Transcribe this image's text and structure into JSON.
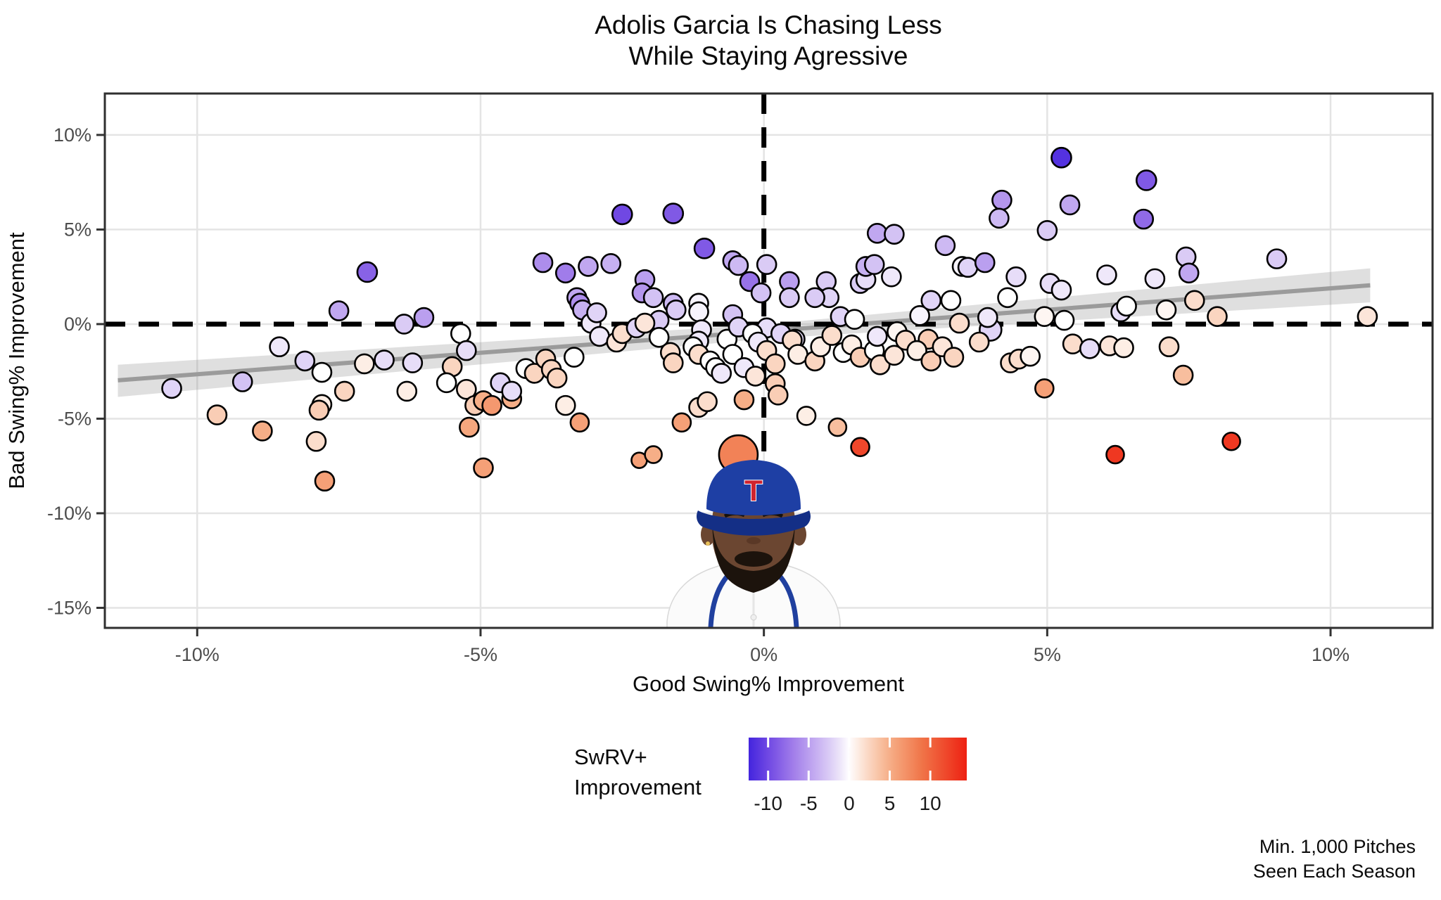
{
  "title": {
    "line1": "Adolis Garcia Is Chasing Less",
    "line2": "While Staying Agressive"
  },
  "footnote": {
    "line1": "Min. 1,000 Pitches",
    "line2": "Seen Each Season"
  },
  "legend": {
    "title_line1": "SwRV+",
    "title_line2": "Improvement",
    "domain": [
      -12.4,
      14.5
    ],
    "ticks": [
      {
        "value": -10,
        "label": "-10"
      },
      {
        "value": -5,
        "label": "-5"
      },
      {
        "value": 0,
        "label": "0"
      },
      {
        "value": 5,
        "label": "5"
      },
      {
        "value": 10,
        "label": "10"
      }
    ]
  },
  "colors": {
    "grid": "#e4e4e4",
    "axis_border": "#2f2f2f",
    "tick": "#333333",
    "reference_line": "#000000",
    "trend_line": "#9b9b9b",
    "trend_band": "rgba(140,140,140,0.28)",
    "point_stroke": "#000000",
    "scale_neg": [
      [
        0,
        "#ffffff"
      ],
      [
        0.12,
        "#e7ddf8"
      ],
      [
        0.3,
        "#cab5f2"
      ],
      [
        0.55,
        "#a37fea"
      ],
      [
        0.8,
        "#7149e3"
      ],
      [
        1,
        "#4325de"
      ]
    ],
    "scale_pos": [
      [
        0,
        "#ffffff"
      ],
      [
        0.14,
        "#fbdccb"
      ],
      [
        0.35,
        "#f6ad85"
      ],
      [
        0.62,
        "#f07448"
      ],
      [
        1,
        "#ee2112"
      ]
    ],
    "neg_max": 12.4,
    "pos_max": 14.5
  },
  "player": {
    "team": "texas-rangers",
    "cap_letter": "T",
    "cap_color": "#1e3fa4",
    "brim_color": "#142f86",
    "letter_color": "#d0242f",
    "skin": "#6b4631",
    "beard": "#1c130c",
    "jersey": "#fbfbfb",
    "trim": "#20409f"
  },
  "chart_data": {
    "type": "scatter",
    "title": "Adolis Garcia Is Chasing Less While Staying Agressive",
    "xlabel": "Good Swing% Improvement",
    "ylabel": "Bad Swing% Improvement",
    "color_label": "SwRV+ Improvement",
    "x_domain": [
      -11.63,
      11.8
    ],
    "y_domain": [
      -16.06,
      12.19
    ],
    "x_ticks": [
      {
        "value": -10,
        "label": "-10%"
      },
      {
        "value": -5,
        "label": "-5%"
      },
      {
        "value": 0,
        "label": "0%"
      },
      {
        "value": 5,
        "label": "5%"
      },
      {
        "value": 10,
        "label": "10%"
      }
    ],
    "y_ticks": [
      {
        "value": 10,
        "label": "10%"
      },
      {
        "value": 5,
        "label": "5%"
      },
      {
        "value": 0,
        "label": "0%"
      },
      {
        "value": -5,
        "label": "-5%"
      },
      {
        "value": -10,
        "label": "-10%"
      },
      {
        "value": -15,
        "label": "-15%"
      }
    ],
    "grid_x": [
      -10,
      -5,
      0,
      5,
      10
    ],
    "grid_y": [
      -15,
      -10,
      -5,
      0,
      5,
      10
    ],
    "reference_lines": {
      "x": 0,
      "y": 0
    },
    "trend": {
      "line": [
        [
          -11.4,
          -2.97
        ],
        [
          10.7,
          2.05
        ]
      ],
      "band_top": [
        [
          -11.4,
          -2.15
        ],
        [
          0,
          -0.02
        ],
        [
          10.7,
          2.95
        ]
      ],
      "band_bottom": [
        [
          -11.4,
          -3.85
        ],
        [
          0,
          -0.78
        ],
        [
          10.7,
          1.15
        ]
      ]
    },
    "points": [
      [
        -10.45,
        -3.4,
        -2,
        13.5
      ],
      [
        -9.2,
        -3.05,
        -3,
        13.5
      ],
      [
        -9.65,
        -4.8,
        3,
        13.5
      ],
      [
        -8.85,
        -5.65,
        5,
        13.5
      ],
      [
        -8.55,
        -1.2,
        -1,
        13.5
      ],
      [
        -8.1,
        -1.95,
        -2,
        13.5
      ],
      [
        -7.75,
        -8.3,
        6,
        13.5
      ],
      [
        -7.8,
        -4.25,
        1,
        13.5
      ],
      [
        -7.85,
        -4.55,
        3,
        13.5
      ],
      [
        -7.8,
        -2.55,
        0,
        13.5
      ],
      [
        -7.0,
        2.75,
        -8.5,
        14
      ],
      [
        -7.5,
        0.7,
        -4.5,
        13.5
      ],
      [
        -6.0,
        0.35,
        -5,
        13.5
      ],
      [
        -6.35,
        0,
        -2.5,
        13.5
      ],
      [
        -7.4,
        -3.55,
        2.5,
        13.5
      ],
      [
        -7.05,
        -2.1,
        1,
        13.5
      ],
      [
        -6.7,
        -1.9,
        -1.5,
        13.5
      ],
      [
        -6.2,
        -2.05,
        -1.5,
        13.5
      ],
      [
        -6.3,
        -3.55,
        1,
        13.5
      ],
      [
        -7.9,
        -6.2,
        2,
        13.5
      ],
      [
        -5.5,
        -2.25,
        2.5,
        13.5
      ],
      [
        -5.35,
        -0.5,
        0,
        13.5
      ],
      [
        -5.25,
        -1.4,
        -1.5,
        13.5
      ],
      [
        -5.6,
        -3.1,
        0,
        13.5
      ],
      [
        -5.25,
        -3.45,
        1.5,
        13.5
      ],
      [
        -5.1,
        -4.3,
        3,
        13.5
      ],
      [
        -4.95,
        -4.05,
        5,
        13.5
      ],
      [
        -4.8,
        -4.3,
        6.5,
        13.5
      ],
      [
        -5.2,
        -5.45,
        5.5,
        13.5
      ],
      [
        -4.95,
        -7.6,
        6,
        13.5
      ],
      [
        -4.45,
        -3.95,
        5,
        13.5
      ],
      [
        -4.2,
        -2.35,
        0,
        13.5
      ],
      [
        -4.05,
        -2.6,
        2.5,
        13.5
      ],
      [
        -4.65,
        -3.1,
        -2,
        13.5
      ],
      [
        -4.45,
        -3.55,
        -1.5,
        13.5
      ],
      [
        -2.5,
        5.8,
        -10,
        14
      ],
      [
        -1.6,
        5.85,
        -9,
        14
      ],
      [
        -1.05,
        4.0,
        -9,
        14
      ],
      [
        -3.9,
        3.25,
        -6,
        13.5
      ],
      [
        -3.5,
        2.7,
        -7,
        13.5
      ],
      [
        -3.1,
        3.05,
        -4.5,
        13.5
      ],
      [
        -2.7,
        3.2,
        -4,
        13.5
      ],
      [
        -2.1,
        2.35,
        -5,
        13.5
      ],
      [
        -2.15,
        1.65,
        -5.5,
        13.5
      ],
      [
        -3.3,
        1.4,
        -4.5,
        13.5
      ],
      [
        -3.25,
        1.1,
        -6,
        13.5
      ],
      [
        -3.2,
        0.75,
        -4,
        13.5
      ],
      [
        -1.95,
        1.4,
        -3,
        13.5
      ],
      [
        -1.6,
        1.1,
        -3.5,
        13.5
      ],
      [
        -1.55,
        0.75,
        -2.5,
        13.5
      ],
      [
        -1.15,
        1.1,
        -0.5,
        13.5
      ],
      [
        -1.15,
        0.65,
        -0.5,
        13.5
      ],
      [
        -1.85,
        0.2,
        -2.5,
        13.5
      ],
      [
        -0.55,
        3.35,
        -4.5,
        13.5
      ],
      [
        -0.45,
        3.1,
        -3.5,
        13.5
      ],
      [
        0.05,
        3.15,
        -2.5,
        13.5
      ],
      [
        -0.25,
        2.25,
        -7.5,
        13.5
      ],
      [
        -0.05,
        1.65,
        -3,
        13.5
      ],
      [
        0.45,
        2.25,
        -5,
        13.5
      ],
      [
        0.45,
        1.4,
        -2.5,
        13.5
      ],
      [
        1.1,
        2.25,
        -2.5,
        13.5
      ],
      [
        1.15,
        1.4,
        -2,
        13.5
      ],
      [
        0.9,
        1.4,
        -2.5,
        13.5
      ],
      [
        1.7,
        2.15,
        -2.5,
        13.5
      ],
      [
        1.8,
        2.35,
        -1.5,
        13.5
      ],
      [
        2.0,
        4.8,
        -4.5,
        13.5
      ],
      [
        2.3,
        4.75,
        -3,
        13.5
      ],
      [
        1.8,
        3.05,
        -4,
        13.5
      ],
      [
        1.95,
        3.15,
        -3,
        13.5
      ],
      [
        2.25,
        2.5,
        -1,
        13.5
      ],
      [
        3.2,
        4.15,
        -3.5,
        13.5
      ],
      [
        3.5,
        3.05,
        -0.5,
        13.5
      ],
      [
        3.6,
        3.0,
        -2,
        13.5
      ],
      [
        3.9,
        3.25,
        -5,
        13.5
      ],
      [
        4.2,
        6.55,
        -5.5,
        13.5
      ],
      [
        4.15,
        5.6,
        -3.5,
        13.5
      ],
      [
        -1.1,
        -0.3,
        -1,
        13.5
      ],
      [
        -0.65,
        -0.8,
        0,
        13.5
      ],
      [
        -0.55,
        0.5,
        -3,
        13.5
      ],
      [
        -0.45,
        -0.15,
        -2,
        13.5
      ],
      [
        0.05,
        -0.2,
        -1.5,
        13.5
      ],
      [
        0.3,
        -0.5,
        -2,
        13.5
      ],
      [
        0.55,
        -0.8,
        -1.5,
        13.5
      ],
      [
        -1.15,
        -0.9,
        -1,
        13.5
      ],
      [
        1.35,
        0.4,
        -2,
        13.5
      ],
      [
        1.6,
        0.25,
        0,
        13.5
      ],
      [
        2.75,
        0.45,
        -0.5,
        13.5
      ],
      [
        2.95,
        1.25,
        -2,
        13.5
      ],
      [
        3.3,
        1.25,
        0,
        13.5
      ],
      [
        2.35,
        -0.4,
        0.5,
        13.5
      ],
      [
        2.9,
        -0.8,
        3,
        13.5
      ],
      [
        4.0,
        -0.3,
        -2,
        15.5
      ],
      [
        -3.85,
        -1.85,
        2.5,
        13.5
      ],
      [
        -3.75,
        -2.4,
        2.5,
        13.5
      ],
      [
        -3.65,
        -2.85,
        2.5,
        13.5
      ],
      [
        -3.35,
        -1.75,
        0,
        13.5
      ],
      [
        -3.05,
        0.05,
        -1,
        13.5
      ],
      [
        -2.9,
        -0.65,
        -1,
        13.5
      ],
      [
        -2.95,
        0.6,
        -2,
        13.5
      ],
      [
        -2.6,
        -0.95,
        1.5,
        13.5
      ],
      [
        -2.5,
        -0.5,
        2,
        13.5
      ],
      [
        -2.25,
        -0.2,
        -2,
        13.5
      ],
      [
        -2.1,
        0.05,
        1.5,
        13.5
      ],
      [
        -1.85,
        -0.7,
        0,
        13.5
      ],
      [
        -1.65,
        -1.5,
        2,
        13.5
      ],
      [
        -1.6,
        -2.05,
        2.5,
        13.5
      ],
      [
        -1.25,
        -1.2,
        0,
        13.5
      ],
      [
        -1.15,
        -1.6,
        2,
        13.5
      ],
      [
        -0.95,
        -1.95,
        0,
        13.5
      ],
      [
        -0.85,
        -2.3,
        0,
        13.5
      ],
      [
        -0.75,
        -2.6,
        -1,
        13.5
      ],
      [
        -0.55,
        -1.6,
        0,
        13.5
      ],
      [
        -0.35,
        -2.3,
        -1,
        13.5
      ],
      [
        -0.2,
        -0.5,
        0,
        13.5
      ],
      [
        -0.1,
        -0.95,
        -1,
        13.5
      ],
      [
        0.05,
        -1.4,
        2,
        13.5
      ],
      [
        0.2,
        -2.1,
        2.5,
        13.5
      ],
      [
        -0.15,
        -2.75,
        1.5,
        13.5
      ],
      [
        0.2,
        -3.15,
        3,
        13.5
      ],
      [
        0.25,
        -3.75,
        3,
        13.5
      ],
      [
        0.5,
        -0.85,
        2,
        13.5
      ],
      [
        0.6,
        -1.6,
        1,
        13.5
      ],
      [
        0.9,
        -1.95,
        2.5,
        13.5
      ],
      [
        1.0,
        -1.2,
        1,
        13.5
      ],
      [
        1.2,
        -0.6,
        2,
        13.5
      ],
      [
        1.4,
        -1.5,
        0,
        13.5
      ],
      [
        1.55,
        -1.1,
        1,
        13.5
      ],
      [
        1.7,
        -1.75,
        3,
        13.5
      ],
      [
        1.95,
        -1.4,
        0,
        13.5
      ],
      [
        2.0,
        -0.65,
        -1,
        13.5
      ],
      [
        2.05,
        -2.15,
        2,
        13.5
      ],
      [
        2.3,
        -1.65,
        1.5,
        13.5
      ],
      [
        2.5,
        -0.85,
        2,
        13.5
      ],
      [
        2.7,
        -1.4,
        1,
        13.5
      ],
      [
        2.95,
        -1.95,
        3,
        13.5
      ],
      [
        3.15,
        -1.2,
        1.5,
        13.5
      ],
      [
        3.35,
        -1.75,
        2.5,
        13.5
      ],
      [
        3.45,
        0.05,
        2,
        13.5
      ],
      [
        3.8,
        -0.95,
        2,
        13.5
      ],
      [
        -0.45,
        -6.9,
        8,
        27.5
      ],
      [
        -2.2,
        -7.2,
        6,
        11
      ],
      [
        -1.95,
        -6.9,
        5,
        12
      ],
      [
        -1.45,
        -5.2,
        6,
        13
      ],
      [
        -3.25,
        -5.2,
        6,
        13
      ],
      [
        -3.5,
        -4.3,
        1,
        13.5
      ],
      [
        -0.35,
        -4.0,
        5,
        13.5
      ],
      [
        -1.15,
        -4.4,
        2,
        13.5
      ],
      [
        -1.0,
        -4.1,
        2,
        13.5
      ],
      [
        0.75,
        -4.85,
        1,
        13
      ],
      [
        1.3,
        -5.45,
        4,
        12.5
      ],
      [
        1.7,
        -6.5,
        12,
        13
      ],
      [
        6.2,
        -6.9,
        13,
        12.5
      ],
      [
        8.25,
        -6.2,
        13,
        12.5
      ],
      [
        4.95,
        -3.4,
        6,
        13
      ],
      [
        7.4,
        -2.7,
        4,
        13.5
      ],
      [
        5.45,
        -1.05,
        2,
        13.5
      ],
      [
        5.75,
        -1.3,
        -1.5,
        13.5
      ],
      [
        6.1,
        -1.15,
        1.5,
        13.5
      ],
      [
        6.35,
        -1.25,
        1,
        13.5
      ],
      [
        7.15,
        -1.2,
        2,
        13.5
      ],
      [
        4.35,
        -2.05,
        2,
        13.5
      ],
      [
        4.5,
        -1.85,
        2,
        13.5
      ],
      [
        4.7,
        -1.7,
        0.5,
        13.5
      ],
      [
        10.65,
        0.4,
        1.5,
        13.5
      ],
      [
        3.95,
        0.35,
        -1,
        13.5
      ],
      [
        4.95,
        0.4,
        0.5,
        13.5
      ],
      [
        5.3,
        0.2,
        0,
        13.5
      ],
      [
        6.3,
        0.65,
        -1.5,
        13.5
      ],
      [
        6.4,
        0.95,
        0,
        13.5
      ],
      [
        7.1,
        0.75,
        0.5,
        13.5
      ],
      [
        7.6,
        1.25,
        2,
        13.5
      ],
      [
        8.0,
        0.4,
        2.5,
        13.5
      ],
      [
        5.25,
        8.8,
        -11.5,
        14
      ],
      [
        6.75,
        7.6,
        -9,
        14
      ],
      [
        5.4,
        6.3,
        -4.5,
        13.5
      ],
      [
        6.7,
        5.55,
        -8,
        13.5
      ],
      [
        5.0,
        4.95,
        -2.5,
        13.5
      ],
      [
        7.45,
        3.55,
        -2.5,
        13.5
      ],
      [
        7.5,
        2.7,
        -4.5,
        13.5
      ],
      [
        9.05,
        3.45,
        -2.5,
        13.5
      ],
      [
        4.45,
        2.5,
        -1.5,
        13.5
      ],
      [
        6.05,
        2.6,
        -1,
        13.5
      ],
      [
        6.9,
        2.4,
        -1,
        13.5
      ],
      [
        5.05,
        2.15,
        -1.5,
        13.5
      ],
      [
        5.25,
        1.8,
        -1,
        13.5
      ],
      [
        4.3,
        1.4,
        0,
        13.5
      ]
    ]
  }
}
